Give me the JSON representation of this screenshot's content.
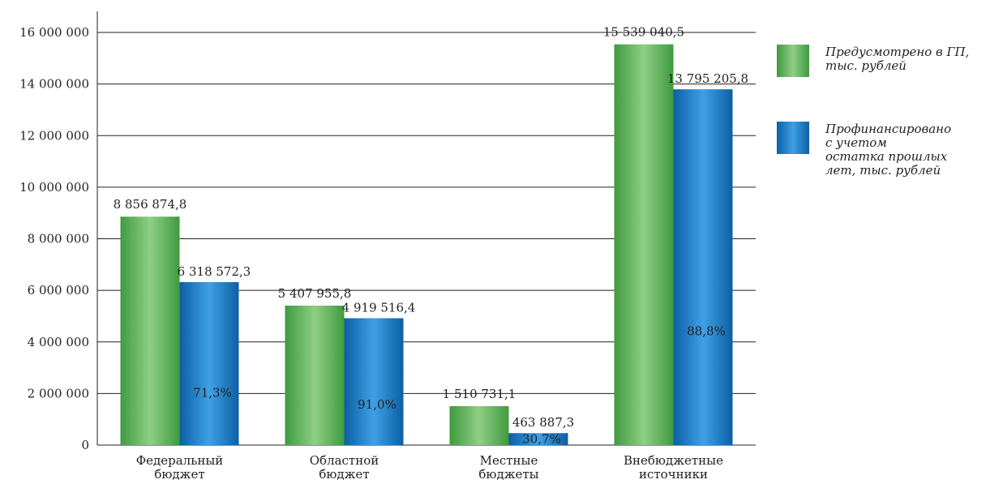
{
  "chart_data": {
    "type": "bar",
    "categories": [
      [
        "Федеральный",
        "бюджет"
      ],
      [
        "Областной",
        "бюджет"
      ],
      [
        "Местные",
        "бюджеты"
      ],
      [
        "Внебюджетные",
        "источники"
      ]
    ],
    "series": [
      {
        "name": [
          "Предусмотрено в ГП,",
          "тыс. рублей"
        ],
        "values": [
          8856874.8,
          5407955.8,
          1510731.1,
          15539040.5
        ],
        "value_labels": [
          "8 856 874,8",
          "5 407 955,8",
          "1 510 731,1",
          "15 539 040,5"
        ],
        "color": "#5db85a"
      },
      {
        "name": [
          "Профинансировано",
          "с учетом",
          "остатка прошлых",
          "лет, тыс. рублей"
        ],
        "values": [
          6318572.3,
          4919516.4,
          463887.3,
          13795205.8
        ],
        "value_labels": [
          "6 318 572,3",
          "4 919 516,4",
          "463 887,3",
          "13 795 205,8"
        ],
        "percent_labels": [
          "71,3%",
          "91,0%",
          "30,7%",
          "88,8%"
        ],
        "color": "#1a7cc6"
      }
    ],
    "y_ticks": [
      0,
      2000000,
      4000000,
      6000000,
      8000000,
      10000000,
      12000000,
      14000000,
      16000000
    ],
    "y_tick_labels": [
      "0",
      "2 000 000",
      "4 000 000",
      "6 000 000",
      "8 000 000",
      "10 000 000",
      "12 000 000",
      "14 000 000",
      "16 000 000"
    ],
    "ylim": [
      0,
      16000000
    ],
    "grid": true,
    "legend_position": "right",
    "title": "",
    "xlabel": "",
    "ylabel": ""
  }
}
